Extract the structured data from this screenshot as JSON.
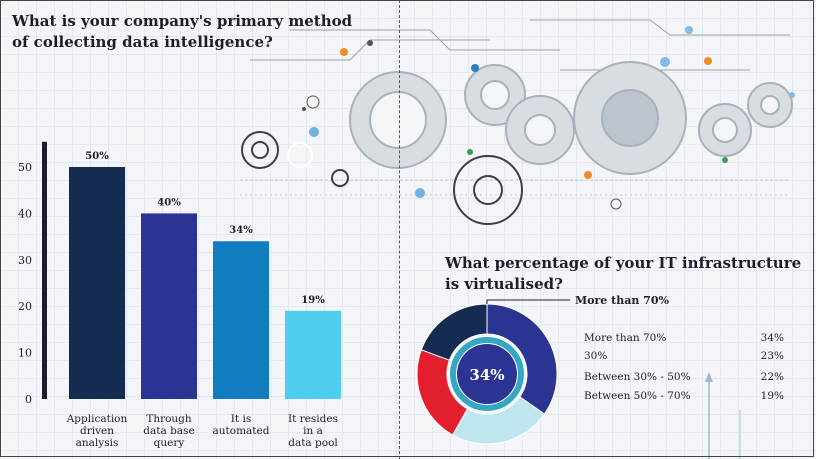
{
  "bar_title": "What is your company's primary method of collecting data intelligence?",
  "pie_title": "What percentage of your IT infrastructure is virtualised?",
  "callout_label": "More than 70%",
  "center_label": "34%",
  "chart_data": [
    {
      "type": "bar",
      "title": "What is your company's primary method of collecting data intelligence?",
      "categories": [
        [
          "Application",
          "driven",
          "analysis"
        ],
        [
          "Through",
          "data base",
          "query"
        ],
        [
          "It is",
          "automated"
        ],
        [
          "It resides",
          "in a",
          "data pool"
        ]
      ],
      "values": [
        50,
        40,
        34,
        19
      ],
      "data_labels": [
        "50%",
        "40%",
        "34%",
        "19%"
      ],
      "colors": [
        "#142b52",
        "#2b3493",
        "#127cc1",
        "#4ecdec"
      ],
      "yticks": [
        0,
        10,
        20,
        30,
        40,
        50
      ],
      "ylim": [
        0,
        55
      ]
    },
    {
      "type": "pie",
      "title": "What percentage of your IT infrastructure is virtualised?",
      "labels": [
        "More than 70%",
        "30%",
        "Between 30% - 50%",
        "Between 50% - 70%"
      ],
      "values": [
        34,
        23,
        22,
        19
      ],
      "value_labels": [
        "34%",
        "23%",
        "22%",
        "19%"
      ],
      "colors": [
        "#2b3493",
        "#bfe6ef",
        "#e41f2d",
        "#142b52"
      ]
    }
  ]
}
